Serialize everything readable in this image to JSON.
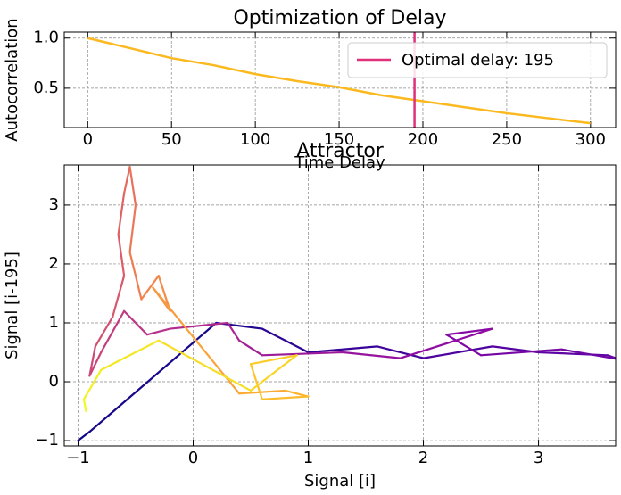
{
  "chart_data": [
    {
      "type": "line",
      "title": "Optimization of Delay",
      "x_label": "Time Delay",
      "y_label": "Autocorrelation",
      "x": [
        0,
        25,
        50,
        75,
        100,
        125,
        150,
        175,
        200,
        225,
        250,
        275,
        300
      ],
      "series": [
        {
          "color": "#fbb91f",
          "values": [
            1.0,
            0.9,
            0.8,
            0.73,
            0.64,
            0.57,
            0.51,
            0.43,
            0.37,
            0.31,
            0.25,
            0.2,
            0.15
          ]
        }
      ],
      "vlines": [
        {
          "x": 195,
          "name": "Optimal delay: 195",
          "color": "#e0307a"
        }
      ],
      "xlim": [
        -14,
        315
      ],
      "ylim": [
        0.107,
        1.06
      ],
      "xticks": [
        0,
        50,
        100,
        150,
        200,
        250,
        300
      ],
      "yticks": [
        0.5,
        {
          "value": 1.0,
          "label": "1.0"
        }
      ],
      "grid": true,
      "legend": "upper right"
    },
    {
      "type": "line",
      "title": "Attractor",
      "x_label": "Signal [i]",
      "y_label": "Signal [i-195]",
      "x": [
        -1.0,
        -0.9,
        0.2,
        0.6,
        1.0,
        1.6,
        2.0,
        2.6,
        3.0,
        3.6,
        3.7,
        3.2,
        2.5,
        2.2,
        2.6,
        1.8,
        1.3,
        0.6,
        0.4,
        0.3,
        -0.2,
        -0.4,
        -0.6,
        -0.8,
        -0.9,
        -0.85,
        -0.7,
        -0.6,
        -0.65,
        -0.6,
        -0.55,
        -0.5,
        -0.55,
        -0.45,
        -0.3,
        -0.2,
        -0.35,
        -0.1,
        0.4,
        0.8,
        1.0,
        0.6,
        0.5,
        0.9,
        0.5,
        -0.3,
        -0.8,
        -0.95,
        -0.93
      ],
      "series": [
        {
          "colormap": "plasma",
          "values": [
            -1.0,
            -0.85,
            1.0,
            0.9,
            0.5,
            0.6,
            0.4,
            0.6,
            0.5,
            0.45,
            0.38,
            0.55,
            0.45,
            0.8,
            0.9,
            0.4,
            0.5,
            0.45,
            0.7,
            1.0,
            0.9,
            0.8,
            1.2,
            0.5,
            0.1,
            0.6,
            1.1,
            1.8,
            2.5,
            3.2,
            3.65,
            3.0,
            2.2,
            1.4,
            1.8,
            1.2,
            1.6,
            1.0,
            -0.2,
            -0.15,
            -0.25,
            -0.3,
            0.3,
            0.45,
            -0.15,
            0.7,
            0.2,
            -0.3,
            -0.5
          ]
        }
      ],
      "xlim": [
        -1.12,
        3.67
      ],
      "ylim": [
        -1.09,
        3.68
      ],
      "xticks": [
        {
          "value": -1,
          "label": "−1"
        },
        0,
        1,
        2,
        3
      ],
      "yticks": [
        {
          "value": -1,
          "label": "−1"
        },
        0,
        1,
        2,
        3
      ],
      "grid": true
    }
  ]
}
